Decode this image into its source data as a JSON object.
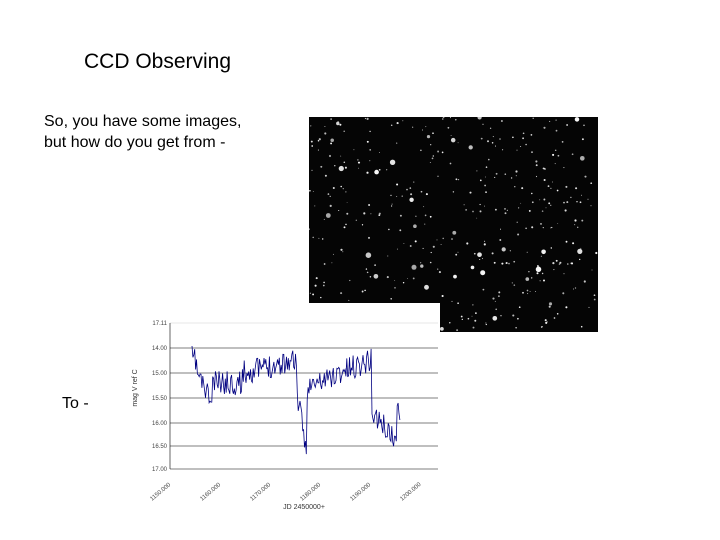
{
  "slide": {
    "title": "CCD Observing",
    "body_text": "So, you have some images, but how do you get from -",
    "to_label": "To -"
  },
  "images": {
    "starfield": {
      "description": "star-field",
      "colors": {
        "background": "#050505",
        "stars": "#ffffff"
      }
    },
    "light_curve": {
      "ylabel": "mag V ref C",
      "xlabel": "JD 2450000+",
      "y_ticks": [
        "17.11",
        "14.00",
        "15.00",
        "15.50",
        "16.00",
        "16.50",
        "17.00"
      ],
      "x_ticks": [
        "1150.000",
        "1160.000",
        "1170.000",
        "1180.000",
        "1190.000",
        "1200.000"
      ],
      "line_color": "#000080"
    }
  }
}
